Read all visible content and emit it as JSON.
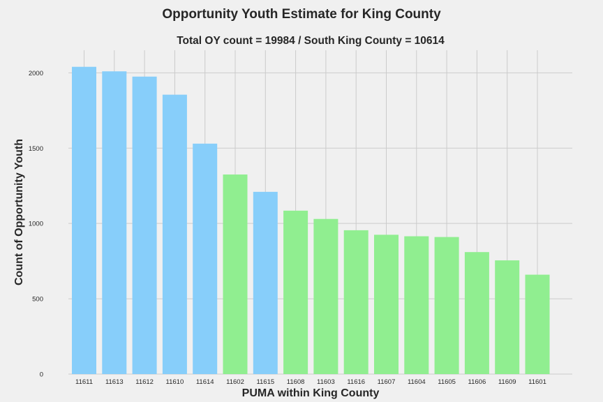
{
  "chart_data": {
    "type": "bar",
    "title": "Opportunity Youth Estimate for King County",
    "subtitle": "Total OY count = 19984 / South King County = 10614",
    "xlabel": "PUMA within King County",
    "ylabel": "Count of Opportunity Youth",
    "ylim": [
      0,
      2150
    ],
    "yticks": [
      0,
      500,
      1000,
      1500,
      2000
    ],
    "grid": true,
    "categories": [
      "11611",
      "11613",
      "11612",
      "11610",
      "11614",
      "11602",
      "11615",
      "11608",
      "11603",
      "11616",
      "11607",
      "11604",
      "11605",
      "11606",
      "11609",
      "11601"
    ],
    "values": [
      2040,
      2010,
      1975,
      1855,
      1530,
      1325,
      1210,
      1085,
      1030,
      955,
      925,
      915,
      910,
      810,
      755,
      660
    ],
    "bar_group": [
      "south",
      "south",
      "south",
      "south",
      "south",
      "other",
      "south",
      "other",
      "other",
      "other",
      "other",
      "other",
      "other",
      "other",
      "other",
      "other"
    ],
    "colors": {
      "south": "#87cefa",
      "other": "#90ee90",
      "background": "#f0f0f0",
      "grid": "#cbcbcb"
    }
  }
}
